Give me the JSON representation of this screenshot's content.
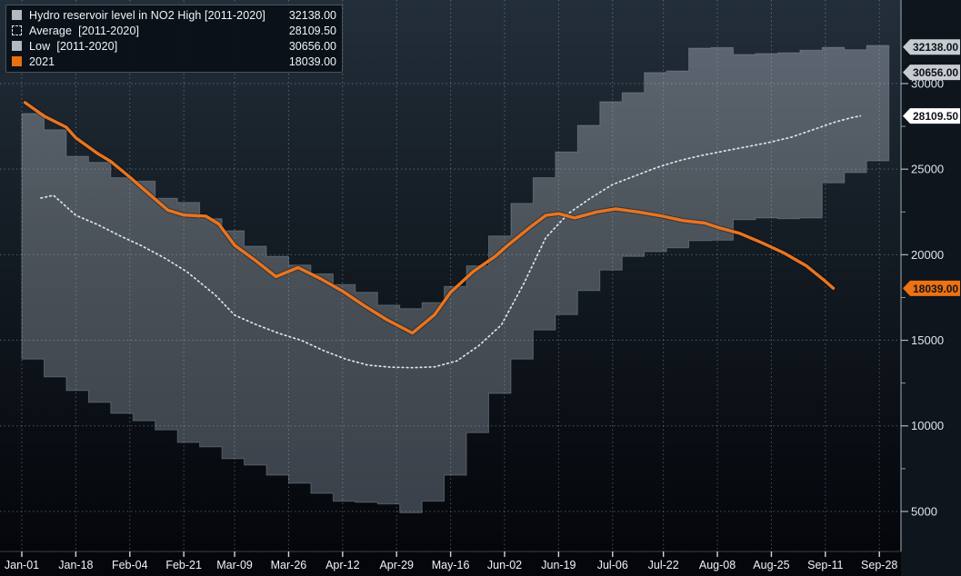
{
  "app": {
    "description": "Terminal seasonality chart of hydro reservoir level in NO2"
  },
  "colors": {
    "background_top": "#222e39",
    "background_mid": "#131b23",
    "background_bottom": "#04060a",
    "band_fill_top": "#5c6570",
    "band_fill_mid": "#4a5158",
    "band_fill_bottom": "#3a414a",
    "band_edge": "#7d8893",
    "grid": "#b9c4cf",
    "average_line": "#dde4e9",
    "series_2021": "#ea7420",
    "axis_line": "#8794a0",
    "axis_text": "#dce3e9",
    "x_axis_text": "#eef3f6",
    "tag_text": "#101418",
    "tag_gray": "#c6ccd2",
    "tag_white": "#ffffff",
    "tag_orange": "#ed7212",
    "legend_swatch_gray": "#b3b9c0",
    "legend_swatch_orange": "#e8700f"
  },
  "legend": {
    "rows": [
      {
        "swatch": "gray-solid",
        "label": "Hydro reservoir level in NO2 High [2011-2020]",
        "value": "32138.00"
      },
      {
        "swatch": "dotted-outline",
        "label": "Average  [2011-2020]",
        "value": "28109.50"
      },
      {
        "swatch": "gray-solid",
        "label": "Low  [2011-2020]",
        "value": "30656.00"
      },
      {
        "swatch": "orange-solid",
        "label": "2021",
        "value": "18039.00"
      }
    ]
  },
  "chart_data": {
    "type": "area",
    "title": "Hydro reservoir level in NO2",
    "xlabel": "",
    "ylabel": "",
    "grid": true,
    "legend_position": "top-left",
    "ylim": [
      2600,
      34900
    ],
    "x_unit": "days since Jan-01",
    "x_axis": {
      "tick_labels": [
        "Jan-01",
        "Jan-18",
        "Feb-04",
        "Feb-21",
        "Mar-09",
        "Mar-26",
        "Apr-12",
        "Apr-29",
        "May-16",
        "Jun-02",
        "Jun-19",
        "Jul-06",
        "Jul-22",
        "Aug-08",
        "Aug-25",
        "Sep-11",
        "Sep-28"
      ],
      "tick_days": [
        0,
        17,
        34,
        51,
        67,
        84,
        101,
        118,
        135,
        152,
        169,
        186,
        202,
        219,
        236,
        253,
        270
      ]
    },
    "y_axis": {
      "tick_values": [
        30000,
        25000,
        20000,
        15000,
        10000,
        5000
      ],
      "tick_labels": [
        "30000",
        "25000",
        "20000",
        "15000",
        "10000",
        "5000"
      ],
      "minor_tick_values": [
        27500,
        22500,
        17500,
        12500,
        7500
      ]
    },
    "series": [
      {
        "name": "High [2011-2020]",
        "style": "step-band-top",
        "last_value": 32138.0,
        "points": [
          [
            0,
            28250
          ],
          [
            7,
            27300
          ],
          [
            14,
            25750
          ],
          [
            21,
            25400
          ],
          [
            28,
            24500
          ],
          [
            35,
            24300
          ],
          [
            42,
            23300
          ],
          [
            49,
            23050
          ],
          [
            56,
            22100
          ],
          [
            63,
            21400
          ],
          [
            70,
            20500
          ],
          [
            77,
            19900
          ],
          [
            84,
            19400
          ],
          [
            91,
            18880
          ],
          [
            98,
            18250
          ],
          [
            105,
            17800
          ],
          [
            112,
            17050
          ],
          [
            119,
            16850
          ],
          [
            126,
            17200
          ],
          [
            133,
            18150
          ],
          [
            140,
            19350
          ],
          [
            147,
            21100
          ],
          [
            154,
            23000
          ],
          [
            161,
            24500
          ],
          [
            168,
            26000
          ],
          [
            175,
            27560
          ],
          [
            182,
            28940
          ],
          [
            189,
            29470
          ],
          [
            196,
            30640
          ],
          [
            203,
            30740
          ],
          [
            210,
            32070
          ],
          [
            217,
            32100
          ],
          [
            224,
            31700
          ],
          [
            231,
            31750
          ],
          [
            238,
            31800
          ],
          [
            245,
            31950
          ],
          [
            252,
            32120
          ],
          [
            259,
            31980
          ],
          [
            266,
            32230
          ],
          [
            273,
            32138
          ]
        ]
      },
      {
        "name": "Low [2011-2020]",
        "style": "step-band-bottom",
        "last_value": 30656.0,
        "points": [
          [
            0,
            13900
          ],
          [
            7,
            12860
          ],
          [
            14,
            12060
          ],
          [
            21,
            11370
          ],
          [
            28,
            10730
          ],
          [
            35,
            10300
          ],
          [
            42,
            9770
          ],
          [
            49,
            9030
          ],
          [
            56,
            8770
          ],
          [
            63,
            8080
          ],
          [
            70,
            7710
          ],
          [
            77,
            7120
          ],
          [
            84,
            6650
          ],
          [
            91,
            6060
          ],
          [
            98,
            5590
          ],
          [
            105,
            5530
          ],
          [
            112,
            5430
          ],
          [
            119,
            4920
          ],
          [
            126,
            5600
          ],
          [
            133,
            7120
          ],
          [
            140,
            9600
          ],
          [
            147,
            11900
          ],
          [
            154,
            13900
          ],
          [
            161,
            15600
          ],
          [
            168,
            16500
          ],
          [
            175,
            17900
          ],
          [
            182,
            19100
          ],
          [
            189,
            19900
          ],
          [
            196,
            20180
          ],
          [
            203,
            20400
          ],
          [
            210,
            20820
          ],
          [
            217,
            20850
          ],
          [
            224,
            22050
          ],
          [
            231,
            22150
          ],
          [
            238,
            22100
          ],
          [
            245,
            22150
          ],
          [
            252,
            24200
          ],
          [
            259,
            24800
          ],
          [
            266,
            25490
          ],
          [
            273,
            30656
          ]
        ]
      },
      {
        "name": "Average [2011-2020]",
        "style": "dotted-line",
        "last_value": 28109.5,
        "points": [
          [
            6,
            23310
          ],
          [
            10,
            23470
          ],
          [
            17,
            22300
          ],
          [
            24,
            21750
          ],
          [
            31,
            21100
          ],
          [
            38,
            20500
          ],
          [
            45,
            19800
          ],
          [
            52,
            19000
          ],
          [
            61,
            17630
          ],
          [
            67,
            16470
          ],
          [
            74,
            15900
          ],
          [
            81,
            15400
          ],
          [
            88,
            15000
          ],
          [
            95,
            14400
          ],
          [
            102,
            13900
          ],
          [
            109,
            13550
          ],
          [
            116,
            13430
          ],
          [
            123,
            13400
          ],
          [
            130,
            13450
          ],
          [
            137,
            13800
          ],
          [
            144,
            14700
          ],
          [
            151,
            15900
          ],
          [
            158,
            18300
          ],
          [
            165,
            21000
          ],
          [
            172,
            22400
          ],
          [
            179,
            23300
          ],
          [
            186,
            24100
          ],
          [
            193,
            24600
          ],
          [
            200,
            25100
          ],
          [
            207,
            25500
          ],
          [
            214,
            25800
          ],
          [
            221,
            26050
          ],
          [
            228,
            26300
          ],
          [
            235,
            26550
          ],
          [
            242,
            26850
          ],
          [
            249,
            27300
          ],
          [
            256,
            27750
          ],
          [
            261,
            28000
          ],
          [
            264,
            28109.5
          ]
        ]
      },
      {
        "name": "2021",
        "style": "solid-line",
        "last_value": 18039.0,
        "points": [
          [
            1,
            28890
          ],
          [
            7,
            28100
          ],
          [
            14,
            27450
          ],
          [
            17,
            26830
          ],
          [
            24,
            25900
          ],
          [
            28,
            25450
          ],
          [
            34,
            24530
          ],
          [
            41,
            23400
          ],
          [
            46,
            22600
          ],
          [
            51,
            22320
          ],
          [
            58,
            22250
          ],
          [
            62,
            21800
          ],
          [
            67,
            20550
          ],
          [
            74,
            19600
          ],
          [
            80,
            18720
          ],
          [
            87,
            19250
          ],
          [
            94,
            18600
          ],
          [
            101,
            17870
          ],
          [
            108,
            17000
          ],
          [
            115,
            16200
          ],
          [
            123,
            15420
          ],
          [
            130,
            16500
          ],
          [
            135,
            17800
          ],
          [
            142,
            19000
          ],
          [
            149,
            19900
          ],
          [
            153,
            20550
          ],
          [
            160,
            21600
          ],
          [
            165,
            22300
          ],
          [
            169,
            22400
          ],
          [
            174,
            22150
          ],
          [
            181,
            22500
          ],
          [
            187,
            22680
          ],
          [
            194,
            22500
          ],
          [
            201,
            22280
          ],
          [
            208,
            22000
          ],
          [
            215,
            21850
          ],
          [
            219,
            21600
          ],
          [
            226,
            21250
          ],
          [
            233,
            20700
          ],
          [
            240,
            20100
          ],
          [
            247,
            19350
          ],
          [
            253,
            18450
          ],
          [
            255.5,
            18039
          ]
        ]
      }
    ],
    "price_tags": [
      {
        "label": "32138.00",
        "value": 32138.0,
        "bg": "#c6ccd2"
      },
      {
        "label": "30656.00",
        "value": 30656.0,
        "bg": "#c6ccd2"
      },
      {
        "label": "28109.50",
        "value": 28109.5,
        "bg": "#ffffff"
      },
      {
        "label": "18039.00",
        "value": 18039.0,
        "bg": "#ed7212"
      }
    ]
  }
}
